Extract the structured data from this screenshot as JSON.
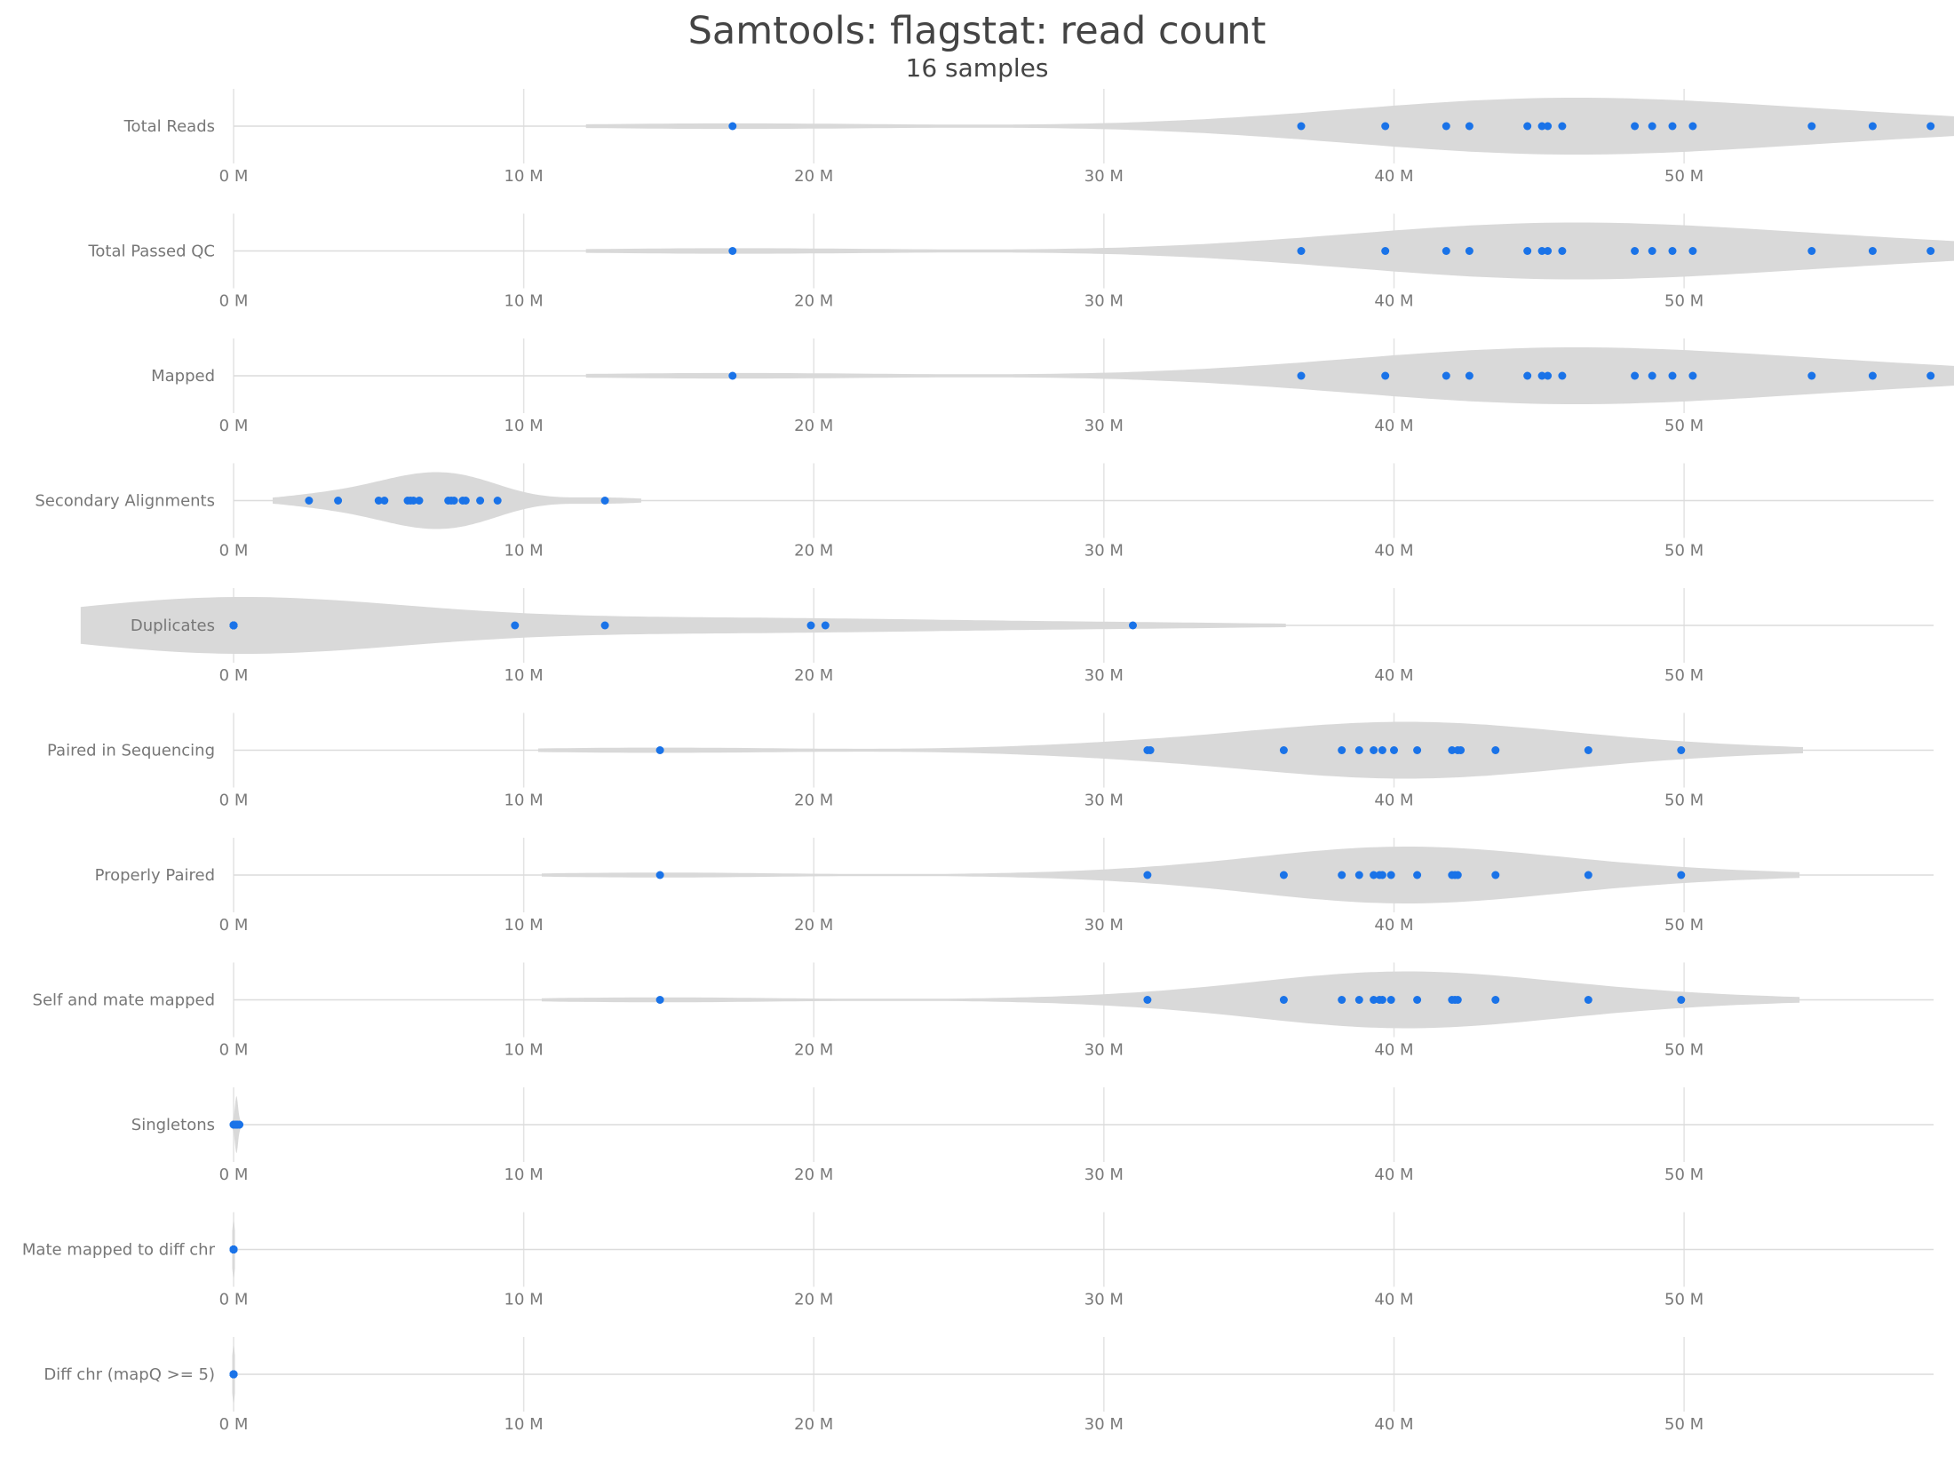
{
  "chart_data": {
    "type": "violin",
    "title": "Samtools: flagstat: read count",
    "subtitle": "16 samples",
    "x_unit": "M",
    "xlim": [
      0,
      58.6
    ],
    "x_ticks": [
      0,
      10,
      20,
      30,
      40,
      50
    ],
    "x_tick_labels": [
      "0 M",
      "10 M",
      "20 M",
      "30 M",
      "40 M",
      "50 M"
    ],
    "grid": true,
    "point_color": "#1a73e8",
    "violin_color": "#d9d9d9",
    "metrics": [
      {
        "label": "Total Reads",
        "values": [
          17.2,
          36.8,
          39.7,
          41.8,
          42.6,
          44.6,
          45.1,
          45.3,
          45.8,
          48.3,
          48.9,
          49.6,
          50.3,
          54.4,
          56.5,
          58.5
        ]
      },
      {
        "label": "Total Passed QC",
        "values": [
          17.2,
          36.8,
          39.7,
          41.8,
          42.6,
          44.6,
          45.1,
          45.3,
          45.8,
          48.3,
          48.9,
          49.6,
          50.3,
          54.4,
          56.5,
          58.5
        ]
      },
      {
        "label": "Mapped",
        "values": [
          17.2,
          36.8,
          39.7,
          41.8,
          42.6,
          44.6,
          45.1,
          45.3,
          45.8,
          48.3,
          48.9,
          49.6,
          50.3,
          54.4,
          56.5,
          58.5
        ]
      },
      {
        "label": "Secondary Alignments",
        "values": [
          2.6,
          3.6,
          5.0,
          5.2,
          6.0,
          6.2,
          6.4,
          7.4,
          7.5,
          7.9,
          8.0,
          8.5,
          9.1,
          12.8,
          6.1,
          7.6
        ]
      },
      {
        "label": "Duplicates",
        "values": [
          0.0,
          0.0,
          0.0,
          0.0,
          0.0,
          0.0,
          0.0,
          0.0,
          0.0,
          0.0,
          9.7,
          12.8,
          19.9,
          20.4,
          31.0,
          0.0
        ]
      },
      {
        "label": "Paired in Sequencing",
        "values": [
          14.7,
          31.5,
          31.6,
          36.2,
          38.2,
          38.8,
          39.3,
          39.6,
          40.0,
          40.8,
          42.0,
          42.2,
          42.3,
          43.5,
          46.7,
          49.9
        ]
      },
      {
        "label": "Properly Paired",
        "values": [
          14.7,
          31.5,
          36.2,
          38.2,
          38.8,
          39.3,
          39.6,
          39.9,
          40.8,
          42.0,
          42.1,
          42.2,
          43.5,
          46.7,
          49.9,
          39.5
        ]
      },
      {
        "label": "Self and mate mapped",
        "values": [
          14.7,
          31.5,
          36.2,
          38.2,
          38.8,
          39.3,
          39.6,
          39.9,
          40.8,
          42.0,
          42.1,
          42.2,
          43.5,
          46.7,
          49.9,
          39.5
        ]
      },
      {
        "label": "Singletons",
        "values": [
          0.0,
          0.0,
          0.1,
          0.1,
          0.1,
          0.1,
          0.1,
          0.1,
          0.1,
          0.1,
          0.1,
          0.1,
          0.1,
          0.1,
          0.2,
          0.2
        ]
      },
      {
        "label": "Mate mapped to diff chr",
        "values": [
          0.0,
          0.0,
          0.0,
          0.0,
          0.0,
          0.0,
          0.0,
          0.0,
          0.0,
          0.0,
          0.0,
          0.0,
          0.0,
          0.0,
          0.0,
          0.0
        ]
      },
      {
        "label": "Diff chr (mapQ >= 5)",
        "values": [
          0.0,
          0.0,
          0.0,
          0.0,
          0.0,
          0.0,
          0.0,
          0.0,
          0.0,
          0.0,
          0.0,
          0.0,
          0.0,
          0.0,
          0.0,
          0.0
        ]
      }
    ]
  }
}
